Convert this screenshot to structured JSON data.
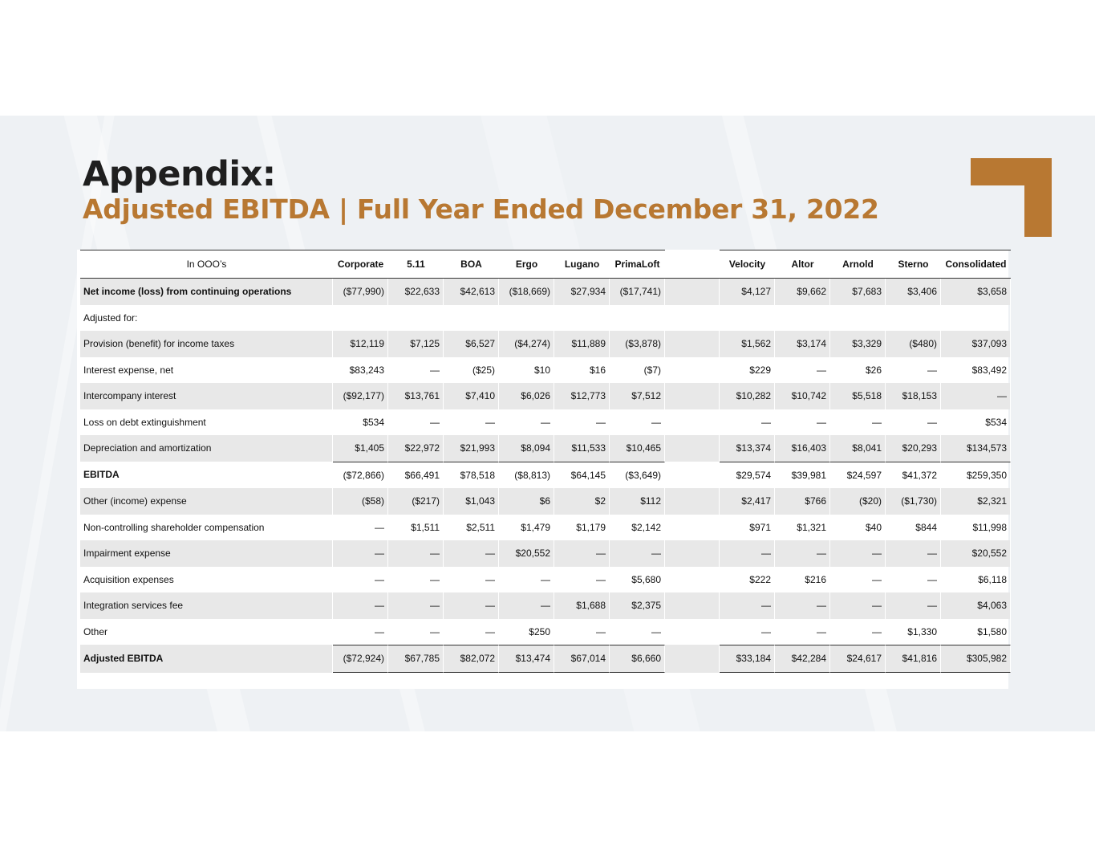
{
  "title": "Appendix:",
  "subtitle": "Adjusted EBITDA | Full Year Ended December 31, 2022",
  "table": {
    "corner_label": "In OOO’s",
    "columns": [
      "Corporate",
      "5.11",
      "BOA",
      "Ergo",
      "Lugano",
      "PrimaLoft",
      "",
      "Velocity",
      "Altor",
      "Arnold",
      "Sterno",
      "Consolidated"
    ],
    "rows": [
      {
        "label": "Net income (loss) from continuing operations",
        "bold": true,
        "shade": true,
        "values": [
          "($77,990)",
          "$22,633",
          "$42,613",
          "($18,669)",
          "$27,934",
          "($17,741)",
          "",
          "$4,127",
          "$9,662",
          "$7,683",
          "$3,406",
          "$3,658"
        ]
      },
      {
        "label": "Adjusted for:",
        "bold": false,
        "shade": false,
        "values": [
          "",
          "",
          "",
          "",
          "",
          "",
          "",
          "",
          "",
          "",
          "",
          ""
        ]
      },
      {
        "label": "Provision (benefit) for income taxes",
        "bold": false,
        "shade": true,
        "values": [
          "$12,119",
          "$7,125",
          "$6,527",
          "($4,274)",
          "$11,889",
          "($3,878)",
          "",
          "$1,562",
          "$3,174",
          "$3,329",
          "($480)",
          "$37,093"
        ]
      },
      {
        "label": "Interest expense, net",
        "bold": false,
        "shade": false,
        "values": [
          "$83,243",
          "—",
          "($25)",
          "$10",
          "$16",
          "($7)",
          "",
          "$229",
          "—",
          "$26",
          "—",
          "$83,492"
        ]
      },
      {
        "label": "Intercompany interest",
        "bold": false,
        "shade": true,
        "values": [
          "($92,177)",
          "$13,761",
          "$7,410",
          "$6,026",
          "$12,773",
          "$7,512",
          "",
          "$10,282",
          "$10,742",
          "$5,518",
          "$18,153",
          "—"
        ]
      },
      {
        "label": "Loss on debt extinguishment",
        "bold": false,
        "shade": false,
        "values": [
          "$534",
          "—",
          "—",
          "—",
          "—",
          "—",
          "",
          "—",
          "—",
          "—",
          "—",
          "$534"
        ]
      },
      {
        "label": "Depreciation and amortization",
        "bold": false,
        "shade": true,
        "values": [
          "$1,405",
          "$22,972",
          "$21,993",
          "$8,094",
          "$11,533",
          "$10,465",
          "",
          "$13,374",
          "$16,403",
          "$8,041",
          "$20,293",
          "$134,573"
        ]
      },
      {
        "label": "EBITDA",
        "bold": true,
        "shade": false,
        "topRule": true,
        "values": [
          "($72,866)",
          "$66,491",
          "$78,518",
          "($8,813)",
          "$64,145",
          "($3,649)",
          "",
          "$29,574",
          "$39,981",
          "$24,597",
          "$41,372",
          "$259,350"
        ]
      },
      {
        "label": "Other (income) expense",
        "bold": false,
        "shade": true,
        "values": [
          "($58)",
          "($217)",
          "$1,043",
          "$6",
          "$2",
          "$112",
          "",
          "$2,417",
          "$766",
          "($20)",
          "($1,730)",
          "$2,321"
        ]
      },
      {
        "label": "Non-controlling shareholder compensation",
        "bold": false,
        "shade": false,
        "values": [
          "—",
          "$1,511",
          "$2,511",
          "$1,479",
          "$1,179",
          "$2,142",
          "",
          "$971",
          "$1,321",
          "$40",
          "$844",
          "$11,998"
        ]
      },
      {
        "label": "Impairment expense",
        "bold": false,
        "shade": true,
        "values": [
          "—",
          "—",
          "—",
          "$20,552",
          "—",
          "—",
          "",
          "—",
          "—",
          "—",
          "—",
          "$20,552"
        ]
      },
      {
        "label": "Acquisition expenses",
        "bold": false,
        "shade": false,
        "values": [
          "—",
          "—",
          "—",
          "—",
          "—",
          "$5,680",
          "",
          "$222",
          "$216",
          "—",
          "—",
          "$6,118"
        ]
      },
      {
        "label": "Integration services fee",
        "bold": false,
        "shade": true,
        "values": [
          "—",
          "—",
          "—",
          "—",
          "$1,688",
          "$2,375",
          "",
          "—",
          "—",
          "—",
          "—",
          "$4,063"
        ]
      },
      {
        "label": "Other",
        "bold": false,
        "shade": false,
        "values": [
          "—",
          "—",
          "—",
          "$250",
          "—",
          "—",
          "",
          "—",
          "—",
          "—",
          "$1,330",
          "$1,580"
        ]
      },
      {
        "label": "Adjusted EBITDA",
        "bold": true,
        "shade": true,
        "topRule": true,
        "botRule": true,
        "values": [
          "($72,924)",
          "$67,785",
          "$82,072",
          "$13,474",
          "$67,014",
          "$6,660",
          "",
          "$33,184",
          "$42,284",
          "$24,617",
          "$41,816",
          "$305,982"
        ]
      }
    ]
  },
  "colors": {
    "accent": "#b87832",
    "title": "#1f1f1f",
    "row_shade": "#e8e8e8"
  }
}
